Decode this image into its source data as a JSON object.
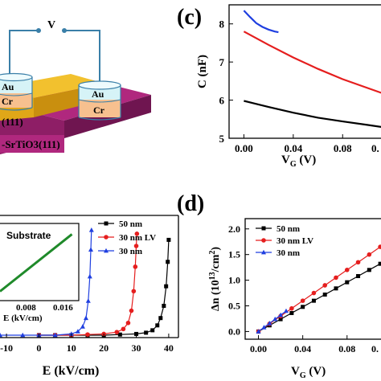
{
  "schematic": {
    "voltage_label": "V",
    "left_electrode": {
      "top": "Au",
      "bottom": "Cr"
    },
    "right_electrode": {
      "top": "Au",
      "bottom": "Cr"
    },
    "film_label": "(111)",
    "substrate_label": "-SrTiO3(111)",
    "colors": {
      "film": "#f2c12e",
      "substrate": "#b0287e",
      "electrode_top": "#d6f3f7",
      "electrode_bottom": "#f7c08f",
      "wire": "#3a7fa8"
    }
  },
  "panel_c": {
    "letter": "(c)"
  },
  "panel_d": {
    "letter": "(d)"
  },
  "chart_data": [
    {
      "id": "c",
      "type": "line",
      "xlabel_main": "V",
      "xlabel_sub": "G",
      "xlabel_unit": " (V)",
      "ylabel": "C (nF)",
      "xlim": [
        -0.012,
        0.115
      ],
      "ylim": [
        5,
        8.5
      ],
      "xticks": [
        0.0,
        0.04,
        0.08
      ],
      "xtick_labels": [
        "0.00",
        "0.04",
        "0.08"
      ],
      "extra_xtick_label": "0.",
      "yticks": [
        5,
        6,
        7,
        8
      ],
      "series": [
        {
          "color": "#1f3fe0",
          "x": [
            0.0,
            0.005,
            0.01,
            0.015,
            0.02,
            0.025,
            0.028
          ],
          "y": [
            8.35,
            8.18,
            8.02,
            7.92,
            7.85,
            7.8,
            7.78
          ]
        },
        {
          "color": "#e51e1e",
          "x": [
            0.0,
            0.02,
            0.04,
            0.06,
            0.08,
            0.1,
            0.115
          ],
          "y": [
            7.8,
            7.45,
            7.12,
            6.82,
            6.55,
            6.32,
            6.15
          ]
        },
        {
          "color": "#000000",
          "x": [
            0.0,
            0.02,
            0.04,
            0.06,
            0.08,
            0.1,
            0.115
          ],
          "y": [
            5.98,
            5.82,
            5.67,
            5.54,
            5.44,
            5.35,
            5.28
          ]
        }
      ]
    },
    {
      "id": "b",
      "type": "line",
      "xlabel": "E (kV/cm)",
      "xlim": [
        -12,
        43
      ],
      "ylim": [
        0,
        1
      ],
      "xticks": [
        -10,
        0,
        10,
        20,
        30,
        40
      ],
      "xtick_labels": [
        "-10",
        "0",
        "10",
        "20",
        "30",
        "40"
      ],
      "legend": [
        {
          "label": "50 nm",
          "color": "#000000",
          "marker": "square"
        },
        {
          "label": "30 nm LV",
          "color": "#e51e1e",
          "marker": "circle"
        },
        {
          "label": "30 nm",
          "color": "#1f3fe0",
          "marker": "triangle"
        }
      ],
      "series": [
        {
          "name": "50 nm",
          "color": "#000000",
          "marker": "square",
          "x": [
            0,
            5,
            10,
            15,
            20,
            25,
            30,
            33,
            35,
            36.5,
            37.5,
            38.5,
            39.2,
            39.7,
            40
          ],
          "y": [
            0.02,
            0.02,
            0.02,
            0.02,
            0.02,
            0.025,
            0.03,
            0.04,
            0.06,
            0.1,
            0.16,
            0.26,
            0.42,
            0.62,
            0.8
          ]
        },
        {
          "name": "30 nm LV",
          "color": "#e51e1e",
          "marker": "circle",
          "x": [
            0,
            5,
            10,
            15,
            20,
            24,
            26,
            27.5,
            28.5,
            29.2,
            29.7,
            30,
            30.2
          ],
          "y": [
            0.02,
            0.02,
            0.02,
            0.025,
            0.03,
            0.045,
            0.07,
            0.12,
            0.22,
            0.38,
            0.58,
            0.75,
            0.85
          ]
        },
        {
          "name": "30 nm",
          "color": "#1f3fe0",
          "marker": "triangle",
          "x": [
            -12,
            -5,
            0,
            5,
            10,
            12,
            13.5,
            14.5,
            15.2,
            15.7,
            16,
            16.2
          ],
          "y": [
            0.02,
            0.02,
            0.02,
            0.02,
            0.03,
            0.05,
            0.09,
            0.16,
            0.3,
            0.5,
            0.72,
            0.88
          ]
        }
      ],
      "inset": {
        "label": "Substrate",
        "xlabel": "E (kV/cm)",
        "xtick_labels": [
          "0.008",
          "0.016"
        ],
        "line_color": "#1f8a2a",
        "xlim": [
          -0.003,
          0.02
        ],
        "ylim": [
          0,
          1
        ],
        "x": [
          -0.003,
          0.018
        ],
        "y": [
          0.12,
          0.86
        ]
      }
    },
    {
      "id": "d",
      "type": "line",
      "xlabel_main": "V",
      "xlabel_sub": "G",
      "xlabel_unit": " (V)",
      "ylabel_main": "Δn (10",
      "ylabel_sup": "13",
      "ylabel_tail": "/cm",
      "ylabel_sup2": "2",
      "ylabel_end": ")",
      "xlim": [
        -0.012,
        0.115
      ],
      "ylim": [
        -0.15,
        2.2
      ],
      "xticks": [
        0.0,
        0.04,
        0.08
      ],
      "xtick_labels": [
        "0.00",
        "0.04",
        "0.08"
      ],
      "extra_xtick_label": "0.",
      "yticks": [
        0.0,
        0.5,
        1.0,
        1.5,
        2.0
      ],
      "ytick_labels": [
        "0.0",
        "0.5",
        "1.0",
        "1.5",
        "2.0"
      ],
      "legend": [
        {
          "label": "50 nm",
          "color": "#000000",
          "marker": "square"
        },
        {
          "label": "30 nm LV",
          "color": "#e51e1e",
          "marker": "circle"
        },
        {
          "label": "30 nm",
          "color": "#1f3fe0",
          "marker": "triangle"
        }
      ],
      "series": [
        {
          "name": "50 nm",
          "color": "#000000",
          "marker": "square",
          "x": [
            0.0,
            0.01,
            0.02,
            0.03,
            0.04,
            0.05,
            0.06,
            0.07,
            0.08,
            0.09,
            0.1,
            0.11
          ],
          "y": [
            0.0,
            0.12,
            0.24,
            0.36,
            0.48,
            0.6,
            0.72,
            0.84,
            0.96,
            1.08,
            1.2,
            1.32
          ]
        },
        {
          "name": "30 nm LV",
          "color": "#e51e1e",
          "marker": "circle",
          "x": [
            0.0,
            0.01,
            0.02,
            0.03,
            0.04,
            0.05,
            0.06,
            0.07,
            0.08,
            0.09,
            0.1,
            0.11
          ],
          "y": [
            0.0,
            0.15,
            0.3,
            0.45,
            0.6,
            0.75,
            0.9,
            1.05,
            1.2,
            1.35,
            1.5,
            1.65
          ]
        },
        {
          "name": "30 nm",
          "color": "#1f3fe0",
          "marker": "triangle",
          "x": [
            0.0,
            0.005,
            0.01,
            0.015,
            0.02,
            0.025
          ],
          "y": [
            0.0,
            0.08,
            0.16,
            0.24,
            0.32,
            0.4
          ]
        }
      ]
    }
  ]
}
